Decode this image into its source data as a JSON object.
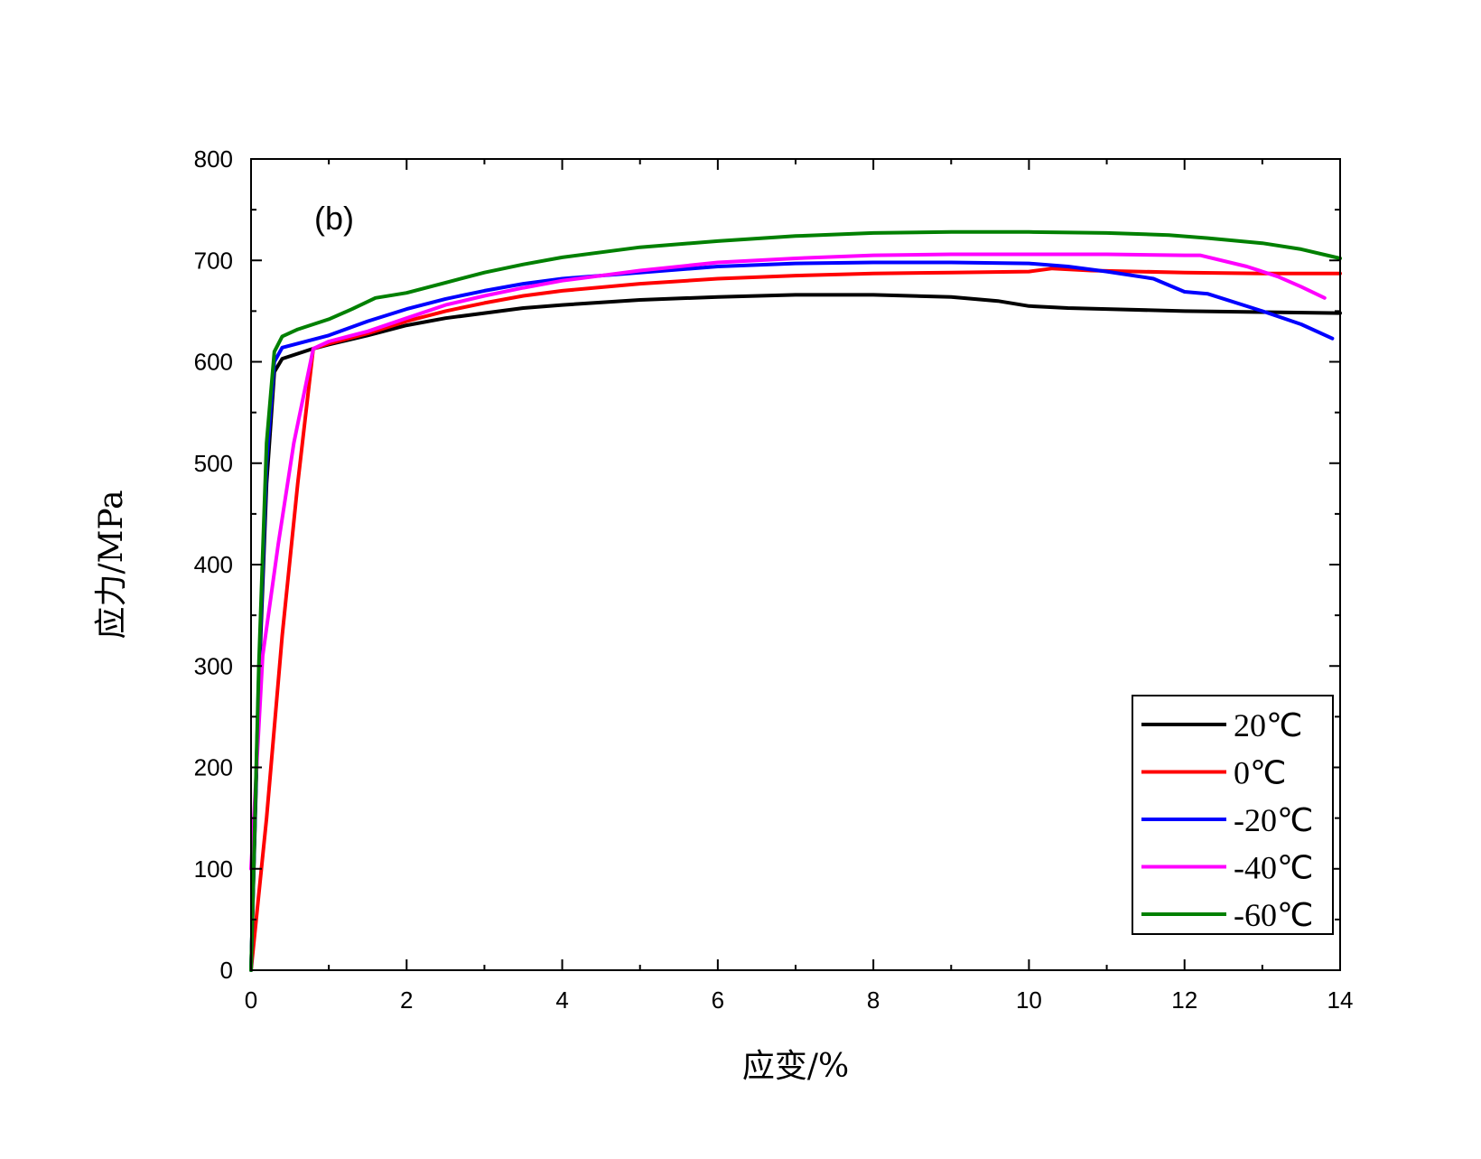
{
  "chart_data": {
    "type": "line",
    "panel_label": "(b)",
    "xlabel": "应变/%",
    "ylabel": "应力/MPa",
    "xlim": [
      0,
      14
    ],
    "ylim": [
      0,
      800
    ],
    "xticks": [
      0,
      2,
      4,
      6,
      8,
      10,
      12,
      14
    ],
    "yticks": [
      0,
      100,
      200,
      300,
      400,
      500,
      600,
      700,
      800
    ],
    "grid": false,
    "legend_position": "bottom-right",
    "series": [
      {
        "name": "20℃",
        "color": "#000000",
        "points": [
          [
            0,
            0
          ],
          [
            0.1,
            280
          ],
          [
            0.2,
            480
          ],
          [
            0.3,
            590
          ],
          [
            0.4,
            603
          ],
          [
            0.6,
            608
          ],
          [
            0.8,
            613
          ],
          [
            1.0,
            617
          ],
          [
            1.5,
            626
          ],
          [
            2.0,
            636
          ],
          [
            2.5,
            643
          ],
          [
            3.0,
            648
          ],
          [
            3.5,
            653
          ],
          [
            4.0,
            656
          ],
          [
            5.0,
            661
          ],
          [
            6.0,
            664
          ],
          [
            7.0,
            666
          ],
          [
            8.0,
            666
          ],
          [
            9.0,
            664
          ],
          [
            9.6,
            660
          ],
          [
            10.0,
            655
          ],
          [
            10.5,
            653
          ],
          [
            11.0,
            652
          ],
          [
            12.0,
            650
          ],
          [
            13.0,
            649
          ],
          [
            14.0,
            648
          ]
        ]
      },
      {
        "name": "0℃",
        "color": "#ff0000",
        "points": [
          [
            0,
            0
          ],
          [
            0.2,
            150
          ],
          [
            0.4,
            330
          ],
          [
            0.6,
            480
          ],
          [
            0.8,
            613
          ],
          [
            1.0,
            618
          ],
          [
            1.5,
            628
          ],
          [
            2.0,
            640
          ],
          [
            2.5,
            650
          ],
          [
            3.0,
            658
          ],
          [
            3.5,
            665
          ],
          [
            4.0,
            670
          ],
          [
            5.0,
            677
          ],
          [
            6.0,
            682
          ],
          [
            7.0,
            685
          ],
          [
            8.0,
            687
          ],
          [
            9.0,
            688
          ],
          [
            10.0,
            689
          ],
          [
            10.3,
            692
          ],
          [
            10.8,
            690
          ],
          [
            12.0,
            688
          ],
          [
            13.0,
            687
          ],
          [
            14.0,
            687
          ]
        ]
      },
      {
        "name": "-20℃",
        "color": "#0000ff",
        "points": [
          [
            0,
            0
          ],
          [
            0.1,
            290
          ],
          [
            0.2,
            500
          ],
          [
            0.3,
            600
          ],
          [
            0.4,
            614
          ],
          [
            0.6,
            618
          ],
          [
            1.0,
            626
          ],
          [
            1.5,
            640
          ],
          [
            2.0,
            652
          ],
          [
            2.5,
            662
          ],
          [
            3.0,
            670
          ],
          [
            3.5,
            677
          ],
          [
            4.0,
            682
          ],
          [
            5.0,
            688
          ],
          [
            6.0,
            694
          ],
          [
            7.0,
            697
          ],
          [
            8.0,
            698
          ],
          [
            9.0,
            698
          ],
          [
            10.0,
            697
          ],
          [
            10.5,
            694
          ],
          [
            11.0,
            689
          ],
          [
            11.6,
            682
          ],
          [
            12.0,
            669
          ],
          [
            12.3,
            667
          ],
          [
            13.0,
            650
          ],
          [
            13.5,
            637
          ],
          [
            13.9,
            623
          ]
        ]
      },
      {
        "name": "-40℃",
        "color": "#ff00ff",
        "points": [
          [
            0,
            100
          ],
          [
            0.15,
            310
          ],
          [
            0.35,
            420
          ],
          [
            0.55,
            520
          ],
          [
            0.8,
            613
          ],
          [
            1.0,
            620
          ],
          [
            1.5,
            630
          ],
          [
            2.0,
            643
          ],
          [
            2.5,
            656
          ],
          [
            3.0,
            665
          ],
          [
            3.5,
            673
          ],
          [
            4.0,
            680
          ],
          [
            5.0,
            690
          ],
          [
            6.0,
            698
          ],
          [
            7.0,
            702
          ],
          [
            8.0,
            705
          ],
          [
            9.0,
            706
          ],
          [
            10.0,
            706
          ],
          [
            11.0,
            706
          ],
          [
            12.0,
            705
          ],
          [
            12.2,
            705
          ],
          [
            12.8,
            694
          ],
          [
            13.2,
            684
          ],
          [
            13.5,
            674
          ],
          [
            13.8,
            663
          ]
        ]
      },
      {
        "name": "-60℃",
        "color": "#008000",
        "points": [
          [
            0,
            0
          ],
          [
            0.1,
            300
          ],
          [
            0.2,
            520
          ],
          [
            0.3,
            610
          ],
          [
            0.4,
            625
          ],
          [
            0.6,
            632
          ],
          [
            1.0,
            642
          ],
          [
            1.3,
            652
          ],
          [
            1.6,
            663
          ],
          [
            2.0,
            668
          ],
          [
            2.5,
            678
          ],
          [
            3.0,
            688
          ],
          [
            3.5,
            696
          ],
          [
            4.0,
            703
          ],
          [
            5.0,
            713
          ],
          [
            6.0,
            719
          ],
          [
            7.0,
            724
          ],
          [
            8.0,
            727
          ],
          [
            9.0,
            728
          ],
          [
            10.0,
            728
          ],
          [
            11.0,
            727
          ],
          [
            11.8,
            725
          ],
          [
            12.3,
            722
          ],
          [
            13.0,
            717
          ],
          [
            13.5,
            711
          ],
          [
            14.0,
            702
          ]
        ]
      }
    ]
  }
}
